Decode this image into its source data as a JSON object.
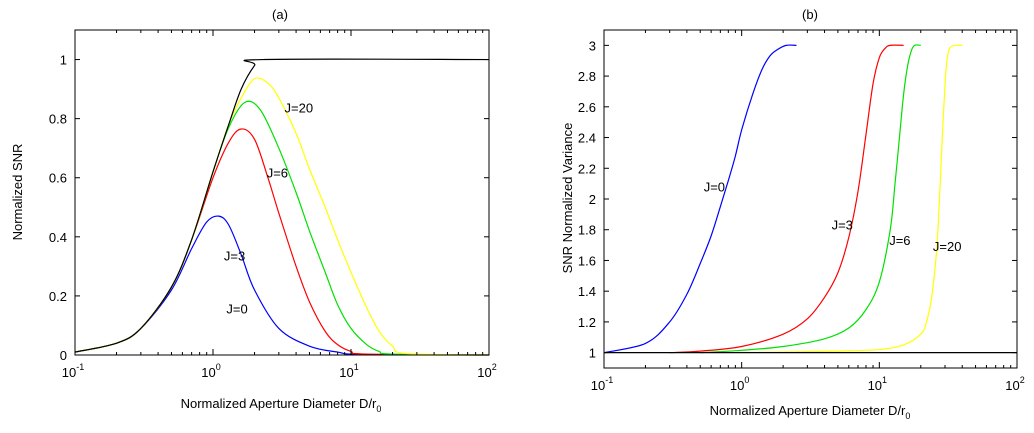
{
  "chart_data": [
    {
      "type": "line",
      "title": "(a)",
      "xlabel": "Normalized Aperture Diameter D/r",
      "xlabel_sub": "0",
      "ylabel": "Normalized SNR",
      "xscale": "log",
      "xlim": [
        0.1,
        100
      ],
      "ylim": [
        0,
        1.1
      ],
      "xticks": [
        {
          "base": "10",
          "exp": "-1",
          "value": 0.1
        },
        {
          "base": "10",
          "exp": "0",
          "value": 1
        },
        {
          "base": "10",
          "exp": "1",
          "value": 10
        },
        {
          "base": "10",
          "exp": "2",
          "value": 100
        }
      ],
      "yticks": [
        "0",
        "0.2",
        "0.4",
        "0.6",
        "0.8",
        "1"
      ],
      "grid": false,
      "series": [
        {
          "name": "J=0",
          "color": "#0000ff",
          "x": [
            0.1,
            0.2,
            0.3,
            0.5,
            0.7,
            0.9,
            1.1,
            1.3,
            1.6,
            2,
            3,
            5,
            8,
            12,
            100
          ],
          "y": [
            0.01,
            0.04,
            0.09,
            0.22,
            0.36,
            0.45,
            0.47,
            0.44,
            0.34,
            0.22,
            0.09,
            0.03,
            0.01,
            0.002,
            0.0
          ]
        },
        {
          "name": "J=3",
          "color": "#ff0000",
          "x": [
            0.1,
            0.2,
            0.3,
            0.5,
            0.7,
            1.0,
            1.3,
            1.6,
            2,
            2.5,
            3,
            4,
            5,
            6.5,
            8,
            10,
            13,
            100
          ],
          "y": [
            0.01,
            0.04,
            0.09,
            0.23,
            0.39,
            0.6,
            0.72,
            0.765,
            0.73,
            0.6,
            0.48,
            0.3,
            0.18,
            0.08,
            0.035,
            0.012,
            0.003,
            0.0
          ]
        },
        {
          "name": "J=6",
          "color": "#00e000",
          "x": [
            0.1,
            0.2,
            0.3,
            0.5,
            0.7,
            1.0,
            1.3,
            1.7,
            2.2,
            3,
            4,
            5,
            6.5,
            8,
            10,
            13,
            16,
            20,
            100
          ],
          "y": [
            0.01,
            0.04,
            0.09,
            0.23,
            0.39,
            0.62,
            0.77,
            0.855,
            0.83,
            0.7,
            0.55,
            0.42,
            0.28,
            0.17,
            0.09,
            0.035,
            0.012,
            0.003,
            0.0
          ]
        },
        {
          "name": "J=20",
          "color": "#ffff00",
          "x": [
            0.1,
            0.2,
            0.3,
            0.5,
            0.7,
            1.0,
            1.3,
            1.6,
            2,
            2.5,
            3,
            4,
            5,
            6.5,
            8,
            10,
            13,
            16,
            20,
            25,
            100
          ],
          "y": [
            0.01,
            0.04,
            0.09,
            0.23,
            0.39,
            0.62,
            0.78,
            0.87,
            0.935,
            0.92,
            0.87,
            0.75,
            0.63,
            0.5,
            0.39,
            0.28,
            0.16,
            0.08,
            0.03,
            0.005,
            0.0
          ]
        },
        {
          "name": "",
          "color": "#000000",
          "x": [
            0.1,
            0.2,
            0.3,
            0.5,
            0.7,
            1.0,
            1.3,
            1.6,
            2.0,
            2.3,
            100
          ],
          "y": [
            0.01,
            0.04,
            0.09,
            0.23,
            0.39,
            0.62,
            0.78,
            0.9,
            0.98,
            1.0,
            1.0
          ]
        }
      ],
      "labels": [
        {
          "text": "J=20",
          "x": 3.3,
          "y": 0.82
        },
        {
          "text": "J=6",
          "x": 2.45,
          "y": 0.6
        },
        {
          "text": "J=3",
          "x": 1.2,
          "y": 0.32
        },
        {
          "text": "J=0",
          "x": 1.25,
          "y": 0.14
        }
      ]
    },
    {
      "type": "line",
      "title": "(b)",
      "xlabel": "Normalized Aperture Diameter D/r",
      "xlabel_sub": "0",
      "ylabel": "SNR Normalized Variance",
      "xscale": "log",
      "xlim": [
        0.1,
        100
      ],
      "ylim": [
        0.9,
        3.1
      ],
      "xticks": [
        {
          "base": "10",
          "exp": "-1",
          "value": 0.1
        },
        {
          "base": "10",
          "exp": "0",
          "value": 1
        },
        {
          "base": "10",
          "exp": "1",
          "value": 10
        },
        {
          "base": "10",
          "exp": "2",
          "value": 100
        }
      ],
      "yticks": [
        "1",
        "1.2",
        "1.4",
        "1.6",
        "1.8",
        "2",
        "2.2",
        "2.4",
        "2.6",
        "2.8",
        "3"
      ],
      "grid": false,
      "series": [
        {
          "name": "J=0",
          "color": "#0000ff",
          "x": [
            0.1,
            0.2,
            0.3,
            0.4,
            0.5,
            0.6,
            0.7,
            0.8,
            0.9,
            1.0,
            1.2,
            1.4,
            1.6,
            1.8,
            2.1,
            2.5
          ],
          "y": [
            1.0,
            1.06,
            1.2,
            1.38,
            1.58,
            1.76,
            1.95,
            2.12,
            2.28,
            2.45,
            2.68,
            2.84,
            2.93,
            2.97,
            3.0,
            3.0
          ]
        },
        {
          "name": "J=3",
          "color": "#ff0000",
          "x": [
            0.3,
            0.5,
            1.0,
            2,
            3,
            4,
            5,
            6,
            7,
            8,
            9,
            10,
            11,
            12,
            15
          ],
          "y": [
            1.0,
            1.01,
            1.04,
            1.12,
            1.22,
            1.36,
            1.52,
            1.75,
            2.05,
            2.42,
            2.75,
            2.92,
            2.98,
            3.0,
            3.0
          ]
        },
        {
          "name": "J=6",
          "color": "#00e000",
          "x": [
            0.5,
            1.0,
            2,
            4,
            6,
            8,
            10,
            12,
            13,
            14,
            15,
            16,
            17,
            18,
            20
          ],
          "y": [
            1.0,
            1.015,
            1.04,
            1.09,
            1.16,
            1.28,
            1.46,
            1.8,
            2.1,
            2.4,
            2.68,
            2.86,
            2.96,
            3.0,
            3.0
          ]
        },
        {
          "name": "J=20",
          "color": "#ffff00",
          "x": [
            1.0,
            5,
            10,
            15,
            20,
            22,
            24,
            26,
            27,
            28,
            29,
            30,
            31,
            33,
            40
          ],
          "y": [
            1.0,
            1.01,
            1.02,
            1.05,
            1.12,
            1.2,
            1.36,
            1.65,
            1.9,
            2.2,
            2.5,
            2.74,
            2.9,
            2.99,
            3.0
          ]
        },
        {
          "name": "",
          "color": "#000000",
          "x": [
            0.1,
            100
          ],
          "y": [
            1.0,
            1.0
          ]
        }
      ],
      "labels": [
        {
          "text": "J=0",
          "x": 0.53,
          "y": 2.05
        },
        {
          "text": "J=3",
          "x": 4.5,
          "y": 1.8
        },
        {
          "text": "J=6",
          "x": 11.8,
          "y": 1.7
        },
        {
          "text": "J=20",
          "x": 24.5,
          "y": 1.66
        }
      ]
    }
  ]
}
